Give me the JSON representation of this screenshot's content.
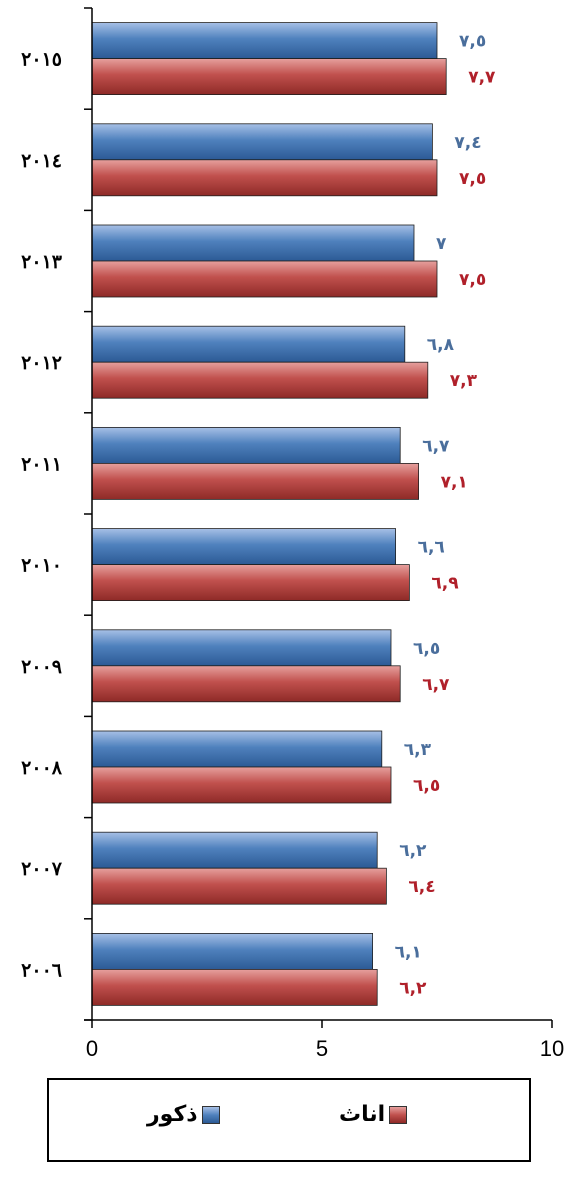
{
  "chart_data": {
    "type": "bar",
    "orientation": "horizontal",
    "categories": [
      "٢٠٠٦",
      "٢٠٠٧",
      "٢٠٠٨",
      "٢٠٠٩",
      "٢٠١٠",
      "٢٠١١",
      "٢٠١٢",
      "٢٠١٣",
      "٢٠١٤",
      "٢٠١٥"
    ],
    "series": [
      {
        "name": "ذكور",
        "color": "#4f81bd",
        "values": [
          6.1,
          6.2,
          6.3,
          6.5,
          6.6,
          6.7,
          6.8,
          7,
          7.4,
          7.5
        ],
        "labels": [
          "٦,١",
          "٦,٢",
          "٦,٣",
          "٦,٥",
          "٦,٦",
          "٦,٧",
          "٦,٨",
          "٧",
          "٧,٤",
          "٧,٥"
        ],
        "label_color": "#4a6e9c"
      },
      {
        "name": "اناث",
        "color": "#c0504d",
        "values": [
          6.2,
          6.4,
          6.5,
          6.7,
          6.9,
          7.1,
          7.3,
          7.5,
          7.5,
          7.7
        ],
        "labels": [
          "٦,٢",
          "٦,٤",
          "٦,٥",
          "٦,٧",
          "٦,٩",
          "٧,١",
          "٧,٣",
          "٧,٥",
          "٧,٥",
          "٧,٧"
        ],
        "label_color": "#b0202a"
      }
    ],
    "xlim": [
      0,
      10
    ],
    "xticks": [
      0,
      5,
      10
    ],
    "grid": false,
    "legend_position": "bottom"
  },
  "legend": {
    "male_label": "ذكور",
    "female_label": "اناث"
  }
}
